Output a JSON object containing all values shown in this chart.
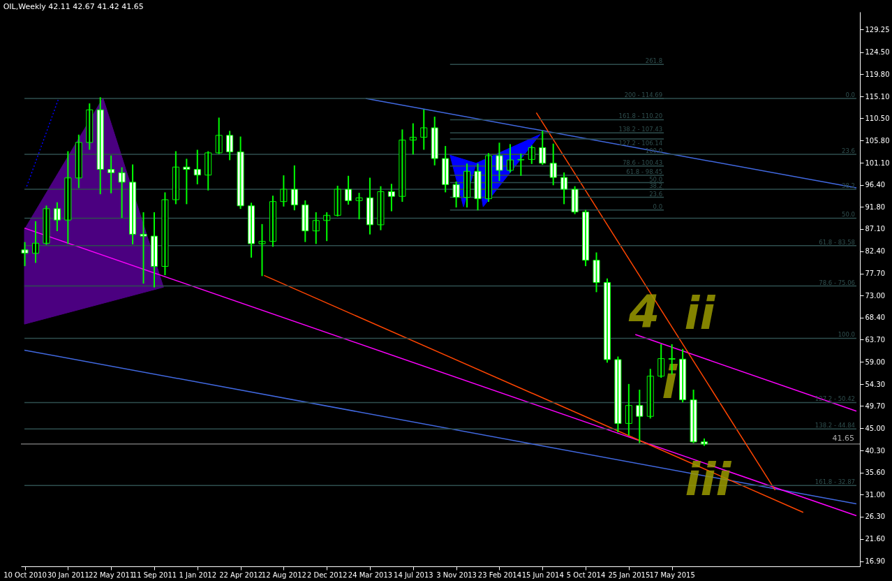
{
  "chart_data": {
    "type": "candlestick",
    "title": "OIL,Weekly  42.11 42.67 41.42 41.65",
    "x": [
      "2010-10-10",
      "2010-11-07",
      "2010-12-05",
      "2011-01-02",
      "2011-01-30",
      "2011-02-27",
      "2011-03-27",
      "2011-04-24",
      "2011-05-22",
      "2011-06-19",
      "2011-07-17",
      "2011-08-14",
      "2011-09-11",
      "2011-10-09",
      "2011-11-06",
      "2011-12-04",
      "2012-01-01",
      "2012-01-29",
      "2012-02-26",
      "2012-03-25",
      "2012-04-22",
      "2012-05-20",
      "2012-06-17",
      "2012-07-15",
      "2012-08-12",
      "2012-09-09",
      "2012-10-07",
      "2012-11-04",
      "2012-12-02",
      "2012-12-30",
      "2013-01-27",
      "2013-02-24",
      "2013-03-24",
      "2013-04-21",
      "2013-05-19",
      "2013-06-16",
      "2013-07-14",
      "2013-08-11",
      "2013-09-08",
      "2013-10-06",
      "2013-11-03",
      "2013-12-01",
      "2013-12-29",
      "2014-01-26",
      "2014-02-23",
      "2014-03-23",
      "2014-04-20",
      "2014-05-18",
      "2014-06-15",
      "2014-07-13",
      "2014-08-10",
      "2014-09-07",
      "2014-10-05",
      "2014-11-02",
      "2014-11-30",
      "2014-12-28",
      "2015-01-25",
      "2015-02-22",
      "2015-03-22",
      "2015-04-19",
      "2015-05-17",
      "2015-06-14",
      "2015-07-12",
      "2015-08-09"
    ],
    "ohlc": [
      [
        82.7,
        84.2,
        79.4,
        82.0
      ],
      [
        82.0,
        88.6,
        80.1,
        84.1
      ],
      [
        84.1,
        91.9,
        83.9,
        91.4
      ],
      [
        91.4,
        92.6,
        86.8,
        89.0
      ],
      [
        89.0,
        103.4,
        84.1,
        97.9
      ],
      [
        97.9,
        106.9,
        95.9,
        105.4
      ],
      [
        105.4,
        113.5,
        104.0,
        112.3
      ],
      [
        112.3,
        114.8,
        94.6,
        99.7
      ],
      [
        99.7,
        102.5,
        94.8,
        99.0
      ],
      [
        99.0,
        100.0,
        89.6,
        97.0
      ],
      [
        97.0,
        100.6,
        84.0,
        86.0
      ],
      [
        86.0,
        90.5,
        75.7,
        85.6
      ],
      [
        85.6,
        90.5,
        74.9,
        79.2
      ],
      [
        79.2,
        94.7,
        77.5,
        93.3
      ],
      [
        93.3,
        103.4,
        92.5,
        100.2
      ],
      [
        100.2,
        101.8,
        92.5,
        99.7
      ],
      [
        99.7,
        103.7,
        96.7,
        98.5
      ],
      [
        98.5,
        103.4,
        95.4,
        103.2
      ],
      [
        103.2,
        110.5,
        103.1,
        106.9
      ],
      [
        106.9,
        107.7,
        101.8,
        103.4
      ],
      [
        103.4,
        106.5,
        91.5,
        92.0
      ],
      [
        92.0,
        92.5,
        81.2,
        84.0
      ],
      [
        84.0,
        88.0,
        77.3,
        84.5
      ],
      [
        84.5,
        94.0,
        83.5,
        92.9
      ],
      [
        92.9,
        98.3,
        92.0,
        95.5
      ],
      [
        95.5,
        100.4,
        91.2,
        92.2
      ],
      [
        92.2,
        93.0,
        84.5,
        86.7
      ],
      [
        86.7,
        90.5,
        84.1,
        88.9
      ],
      [
        88.9,
        90.5,
        84.7,
        90.0
      ],
      [
        90.0,
        96.1,
        89.9,
        95.5
      ],
      [
        95.5,
        98.2,
        92.4,
        93.1
      ],
      [
        93.1,
        94.6,
        89.3,
        93.7
      ],
      [
        93.7,
        97.8,
        86.1,
        88.0
      ],
      [
        88.0,
        96.0,
        87.0,
        95.0
      ],
      [
        95.0,
        96.5,
        91.0,
        94.0
      ],
      [
        94.0,
        108.0,
        93.0,
        105.9
      ],
      [
        105.9,
        109.3,
        103.0,
        106.5
      ],
      [
        106.5,
        112.2,
        104.0,
        108.5
      ],
      [
        108.5,
        110.7,
        100.7,
        102.0
      ],
      [
        102.0,
        104.5,
        95.0,
        96.5
      ],
      [
        96.5,
        97.0,
        91.8,
        93.8
      ],
      [
        93.8,
        100.8,
        91.8,
        99.3
      ],
      [
        99.3,
        100.8,
        91.2,
        93.5
      ],
      [
        93.5,
        103.0,
        93.0,
        102.6
      ],
      [
        102.6,
        105.2,
        97.4,
        99.5
      ],
      [
        99.5,
        104.9,
        99.2,
        101.7
      ],
      [
        101.7,
        102.9,
        98.5,
        101.8
      ],
      [
        101.8,
        104.6,
        101.0,
        104.3
      ],
      [
        104.3,
        107.7,
        100.8,
        101.0
      ],
      [
        101.0,
        105.0,
        96.5,
        98.0
      ],
      [
        98.0,
        98.9,
        92.5,
        95.5
      ],
      [
        95.5,
        96.0,
        90.4,
        90.7
      ],
      [
        90.7,
        91.0,
        79.4,
        80.5
      ],
      [
        80.5,
        82.0,
        73.9,
        75.8
      ],
      [
        75.8,
        76.5,
        59.0,
        59.5
      ],
      [
        59.5,
        60.0,
        44.3,
        46.0
      ],
      [
        46.0,
        54.2,
        43.6,
        49.8
      ],
      [
        49.8,
        53.0,
        42.0,
        47.5
      ],
      [
        47.5,
        57.4,
        47.2,
        56.0
      ],
      [
        56.0,
        62.6,
        55.8,
        59.7
      ],
      [
        59.7,
        62.6,
        56.5,
        59.6
      ],
      [
        59.6,
        61.6,
        50.6,
        51.0
      ],
      [
        51.0,
        53.0,
        42.0,
        42.11
      ],
      [
        42.11,
        42.67,
        41.42,
        41.65
      ]
    ],
    "color": "#00ff00",
    "colors": [
      "#ffffff",
      "#000000",
      "#000000",
      "#ffffff",
      "#000000",
      "#000000",
      "#000000",
      "#ffffff",
      "#ffffff",
      "#ffffff",
      "#ffffff",
      "#ffffff",
      "#ffffff",
      "#000000",
      "#000000",
      "#ffffff",
      "#ffffff",
      "#000000",
      "#000000",
      "#ffffff",
      "#ffffff",
      "#ffffff",
      "#000000",
      "#000000",
      "#000000",
      "#ffffff",
      "#ffffff",
      "#000000",
      "#000000",
      "#000000",
      "#ffffff",
      "#000000",
      "#ffffff",
      "#000000",
      "#ffffff",
      "#000000",
      "#000000",
      "#000000",
      "#ffffff",
      "#ffffff",
      "#ffffff",
      "#000000",
      "#ffffff",
      "#000000",
      "#ffffff",
      "#000000",
      "#000000",
      "#000000",
      "#ffffff",
      "#ffffff",
      "#ffffff",
      "#ffffff",
      "#ffffff",
      "#ffffff",
      "#ffffff",
      "#ffffff",
      "#000000",
      "#ffffff",
      "#000000",
      "#000000",
      "#ffffff",
      "#ffffff",
      "#ffffff",
      "#ffffff"
    ],
    "series": [
      {
        "type": "area",
        "color": "#4b0080",
        "x": [
          "2010-10-09",
          "2011-05-01",
          "2011-10-05",
          "2010-10-09"
        ],
        "values": [
          87.0,
          114.8,
          74.8,
          67.0
        ]
      },
      {
        "type": "area",
        "color": "#0000ff",
        "x": [
          "2013-10-18",
          "2013-12-25",
          "2014-06-09",
          "2014-01-12",
          "2013-12-25",
          "2013-11-22"
        ],
        "values": [
          102.7,
          101.0,
          107.1,
          91.8,
          101.0,
          91.8
        ]
      },
      {
        "type": "line",
        "color": "#4169e1",
        "x": [
          "2013-03-13",
          "2016-09-07"
        ],
        "values": [
          114.7,
          95.8
        ]
      },
      {
        "type": "line",
        "color": "#4169e1",
        "x": [
          "2010-10-09",
          "2016-09-07"
        ],
        "values": [
          61.5,
          29.0
        ]
      },
      {
        "type": "line",
        "color": "#ff00ff",
        "x": [
          "2010-10-09",
          "2016-09-07"
        ],
        "values": [
          87.3,
          26.5
        ]
      },
      {
        "type": "line",
        "color": "#ff00ff",
        "x": [
          "2015-02-11",
          "2016-09-07"
        ],
        "values": [
          64.8,
          48.6
        ]
      },
      {
        "type": "line",
        "color": "#ff4500",
        "x": [
          "2012-06-22",
          "2016-04-22"
        ],
        "values": [
          77.3,
          27.2
        ]
      },
      {
        "type": "line",
        "color": "#ff4500",
        "x": [
          "2014-05-30",
          "2016-02-09"
        ],
        "values": [
          111.7,
          31.9
        ]
      },
      {
        "type": "line",
        "color": "#0000ff",
        "line_style": "dotted",
        "x": [
          "2010-10-15",
          "2011-01-05"
        ],
        "values": [
          96.1,
          114.5
        ]
      },
      {
        "type": "line",
        "name": "261.8",
        "color": "#2f4f4f",
        "x": [
          "2013-10-18",
          "2015-04-26"
        ],
        "values": [
          121.9,
          121.9
        ]
      },
      {
        "type": "line",
        "name": "200 - 114.69",
        "color": "#2f4f4f",
        "x": [
          "2013-10-18",
          "2015-04-26"
        ],
        "values": [
          114.69,
          114.69
        ]
      },
      {
        "type": "line",
        "name": "161.8 -  110.20",
        "color": "#2f4f4f",
        "x": [
          "2013-10-18",
          "2015-04-26"
        ],
        "values": [
          110.2,
          110.2
        ]
      },
      {
        "type": "line",
        "name": "138.2 - 107.43",
        "color": "#2f4f4f",
        "x": [
          "2013-10-18",
          "2015-04-26"
        ],
        "values": [
          107.43,
          107.43
        ]
      },
      {
        "type": "line",
        "name": "127.2 - 106.14",
        "color": "#2f4f4f",
        "x": [
          "2013-10-18",
          "2015-04-26"
        ],
        "values": [
          106.14,
          106.14
        ]
      },
      {
        "type": "line",
        "name": "100.0",
        "color": "#2f4f4f",
        "x": [
          "2013-10-18",
          "2015-04-26"
        ],
        "values": [
          102.9,
          102.9
        ]
      },
      {
        "type": "line",
        "name": "78.6 - 100.43",
        "color": "#2f4f4f",
        "x": [
          "2013-10-18",
          "2015-04-26"
        ],
        "values": [
          100.43,
          100.43
        ]
      },
      {
        "type": "line",
        "name": "61.8 - 98.45",
        "color": "#2f4f4f",
        "x": [
          "2013-10-18",
          "2015-04-26"
        ],
        "values": [
          98.45,
          98.45
        ]
      },
      {
        "type": "line",
        "name": "50.0",
        "color": "#2f4f4f",
        "x": [
          "2013-10-18",
          "2015-04-26"
        ],
        "values": [
          96.9,
          96.9
        ]
      },
      {
        "type": "line",
        "name": "38.2",
        "color": "#2f4f4f",
        "x": [
          "2013-10-18",
          "2015-04-26"
        ],
        "values": [
          95.5,
          95.5
        ]
      },
      {
        "type": "line",
        "name": "23.6",
        "color": "#2f4f4f",
        "x": [
          "2013-10-18",
          "2015-04-26"
        ],
        "values": [
          93.8,
          93.8
        ]
      },
      {
        "type": "line",
        "name": "0.0",
        "color": "#2f4f4f",
        "x": [
          "2013-10-18",
          "2015-04-26"
        ],
        "values": [
          91.1,
          91.1
        ]
      },
      {
        "type": "line",
        "name": "0.0",
        "color": "#2f4f4f",
        "x": [
          "2010-10-09",
          "2016-09-07"
        ],
        "values": [
          114.7,
          114.7
        ]
      },
      {
        "type": "line",
        "name": "23.6",
        "color": "#2f4f4f",
        "x": [
          "2010-10-09",
          "2016-09-07"
        ],
        "values": [
          102.9,
          102.9
        ]
      },
      {
        "type": "line",
        "name": "38.2",
        "color": "#2f4f4f",
        "x": [
          "2010-10-09",
          "2016-09-07"
        ],
        "values": [
          95.5,
          95.5
        ]
      },
      {
        "type": "line",
        "name": "50.0",
        "color": "#2f4f4f",
        "x": [
          "2010-10-09",
          "2016-09-07"
        ],
        "values": [
          89.4,
          89.4
        ]
      },
      {
        "type": "line",
        "name": "61.8 - 83.58",
        "color": "#2f4f4f",
        "x": [
          "2010-10-09",
          "2016-09-07"
        ],
        "values": [
          83.58,
          83.58
        ]
      },
      {
        "type": "line",
        "name": "78.6 - 75.06",
        "color": "#2f4f4f",
        "x": [
          "2010-10-09",
          "2016-09-07"
        ],
        "values": [
          75.06,
          75.06
        ]
      },
      {
        "type": "line",
        "name": "100.0",
        "color": "#2f4f4f",
        "x": [
          "2010-10-09",
          "2016-09-07"
        ],
        "values": [
          64.0,
          64.0
        ]
      },
      {
        "type": "line",
        "name": "127.2 - 50.42",
        "color": "#2f4f4f",
        "x": [
          "2010-10-09",
          "2016-09-07"
        ],
        "values": [
          50.42,
          50.42
        ]
      },
      {
        "type": "line",
        "name": "138.2 - 44.84",
        "color": "#2f4f4f",
        "x": [
          "2010-10-09",
          "2016-09-07"
        ],
        "values": [
          44.84,
          44.84
        ]
      },
      {
        "type": "line",
        "name": "161.8 -  32.87",
        "color": "#2f4f4f",
        "x": [
          "2010-10-09",
          "2016-09-07"
        ],
        "values": [
          32.87,
          32.87
        ]
      }
    ],
    "ref_lines": [
      {
        "axis": "y",
        "value": 41.65,
        "label": "41.65",
        "color": "#a9a9a9"
      }
    ],
    "annotations": [
      "4",
      "ii",
      "i",
      "iii"
    ],
    "xlim": [
      "2010-10-09",
      "2016-09-07"
    ],
    "ylim": [
      15.8,
      133.0
    ],
    "xticks": [
      {
        "value": "2010-10-10",
        "label": "10 Oct 2010"
      },
      {
        "value": "2011-01-30",
        "label": "30 Jan 2011"
      },
      {
        "value": "2011-05-22",
        "label": "22 May 2011"
      },
      {
        "value": "2011-09-11",
        "label": "11 Sep 2011"
      },
      {
        "value": "2012-01-01",
        "label": "1 Jan 2012"
      },
      {
        "value": "2012-04-22",
        "label": "22 Apr 2012"
      },
      {
        "value": "2012-08-12",
        "label": "12 Aug 2012"
      },
      {
        "value": "2012-12-02",
        "label": "2 Dec 2012"
      },
      {
        "value": "2013-03-24",
        "label": "24 Mar 2013"
      },
      {
        "value": "2013-07-14",
        "label": "14 Jul 2013"
      },
      {
        "value": "2013-11-03",
        "label": "3 Nov 2013"
      },
      {
        "value": "2014-02-23",
        "label": "23 Feb 2014"
      },
      {
        "value": "2014-06-15",
        "label": "15 Jun 2014"
      },
      {
        "value": "2014-10-05",
        "label": "5 Oct 2014"
      },
      {
        "value": "2015-01-25",
        "label": "25 Jan 2015"
      },
      {
        "value": "2015-05-17",
        "label": "17 May 2015"
      }
    ],
    "yticks": [
      {
        "value": 16.9,
        "label": "16.90"
      },
      {
        "value": 21.6,
        "label": "21.60"
      },
      {
        "value": 26.3,
        "label": "26.30"
      },
      {
        "value": 31.0,
        "label": "31.00"
      },
      {
        "value": 35.6,
        "label": "35.60"
      },
      {
        "value": 40.3,
        "label": "40.30"
      },
      {
        "value": 45.0,
        "label": "45.00"
      },
      {
        "value": 49.7,
        "label": "49.70"
      },
      {
        "value": 54.3,
        "label": "54.30"
      },
      {
        "value": 59.0,
        "label": "59.00"
      },
      {
        "value": 63.7,
        "label": "63.70"
      },
      {
        "value": 68.4,
        "label": "68.40"
      },
      {
        "value": 73.0,
        "label": "73.00"
      },
      {
        "value": 77.7,
        "label": "77.70"
      },
      {
        "value": 82.4,
        "label": "82.40"
      },
      {
        "value": 87.1,
        "label": "87.10"
      },
      {
        "value": 91.8,
        "label": "91.80"
      },
      {
        "value": 96.4,
        "label": "96.40"
      },
      {
        "value": 101.1,
        "label": "101.10"
      },
      {
        "value": 105.8,
        "label": "105.80"
      },
      {
        "value": 110.5,
        "label": "110.50"
      },
      {
        "value": 115.1,
        "label": "115.10"
      },
      {
        "value": 119.8,
        "label": "119.80"
      },
      {
        "value": 124.5,
        "label": "124.50"
      },
      {
        "value": 129.25,
        "label": "129.25"
      }
    ],
    "grid": false
  }
}
